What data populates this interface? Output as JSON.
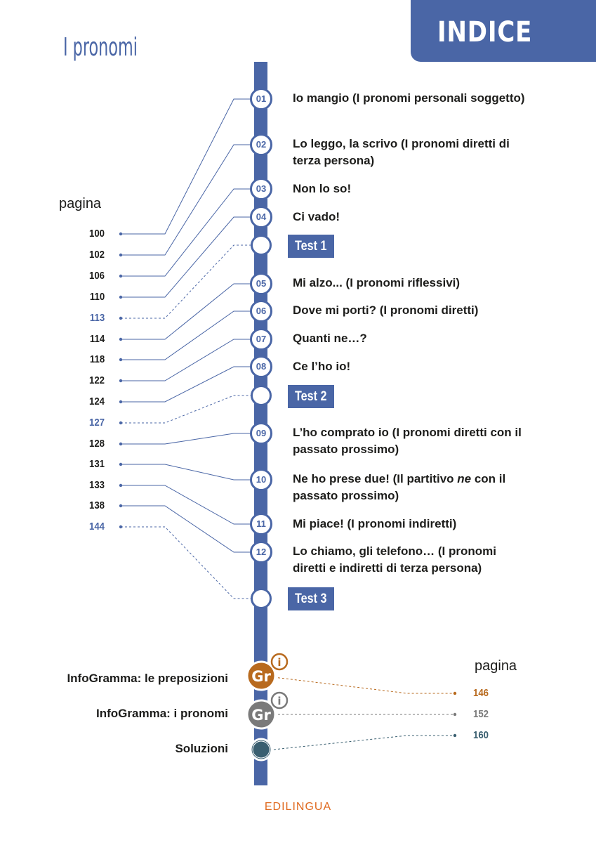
{
  "header": {
    "tab_title": "INDICE",
    "section_title": "I pronomi"
  },
  "labels": {
    "pagina_left": "pagina",
    "pagina_right": "pagina"
  },
  "chapters": [
    {
      "num": "01",
      "title": "Io mangio (I pronomi personali soggetto)",
      "page": "100"
    },
    {
      "num": "02",
      "title": "Lo leggo, la scrivo (I pronomi diretti di terza persona)",
      "page": "102"
    },
    {
      "num": "03",
      "title": "Non lo so!",
      "page": "106"
    },
    {
      "num": "04",
      "title": "Ci vado!",
      "page": "110"
    },
    {
      "num": "05",
      "title": "Mi alzo... (I pronomi riflessivi)",
      "page": "114"
    },
    {
      "num": "06",
      "title": "Dove mi porti? (I pronomi diretti)",
      "page": "118"
    },
    {
      "num": "07",
      "title": "Quanti ne…?",
      "page": "122"
    },
    {
      "num": "08",
      "title": "Ce l’ho io!",
      "page": "124"
    },
    {
      "num": "09",
      "title": "L’ho comprato io (I pronomi diretti con il passato prossimo)",
      "page": "128"
    },
    {
      "num": "10",
      "title_before": "Ne ho prese due! (Il partitivo ",
      "title_italic": "ne",
      "title_after": " con il passato prossimo)",
      "page": "131"
    },
    {
      "num": "11",
      "title": "Mi piace! (I pronomi indiretti)",
      "page": "133"
    },
    {
      "num": "12",
      "title": "Lo chiamo, gli telefono… (I pronomi diretti e indiretti di terza persona)",
      "page": "138"
    }
  ],
  "tests": [
    {
      "label": "Test 1",
      "page": "113"
    },
    {
      "label": "Test 2",
      "page": "127"
    },
    {
      "label": "Test 3",
      "page": "144"
    }
  ],
  "extras": [
    {
      "label": "InfoGramma: le preposizioni",
      "page": "146",
      "color": "#b86a1e",
      "icon": "gr-info-icon"
    },
    {
      "label": "InfoGramma: i pronomi",
      "page": "152",
      "color": "#7a7a7a",
      "icon": "gr-info-icon"
    },
    {
      "label": "Soluzioni",
      "page": "160",
      "color": "#3a5f70",
      "icon": "solutions-circle-icon"
    }
  ],
  "icons": {
    "gr_text": "Gr",
    "info_text": "i"
  },
  "footer": {
    "publisher": "EDILINGUA"
  },
  "colors": {
    "accent": "#4a66a6",
    "orange": "#b86a1e",
    "grey": "#7a7a7a",
    "teal": "#3a5f70"
  }
}
